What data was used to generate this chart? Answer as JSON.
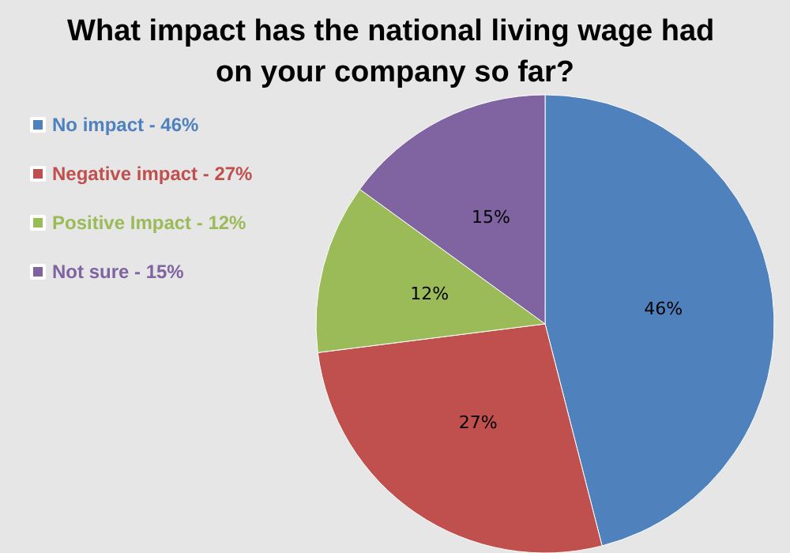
{
  "chart_data": {
    "type": "pie",
    "title": "What impact has the national living wage had on your company so far?",
    "categories": [
      "No impact - 46%",
      "Negative impact - 27%",
      "Positive Impact - 12%",
      "Not sure - 15%"
    ],
    "values": [
      46,
      27,
      12,
      15
    ],
    "colors": [
      "#4f81bd",
      "#c0504d",
      "#9bbb59",
      "#8064a2"
    ],
    "value_labels": [
      "46%",
      "27%",
      "12%",
      "15%"
    ],
    "legend": "left"
  }
}
